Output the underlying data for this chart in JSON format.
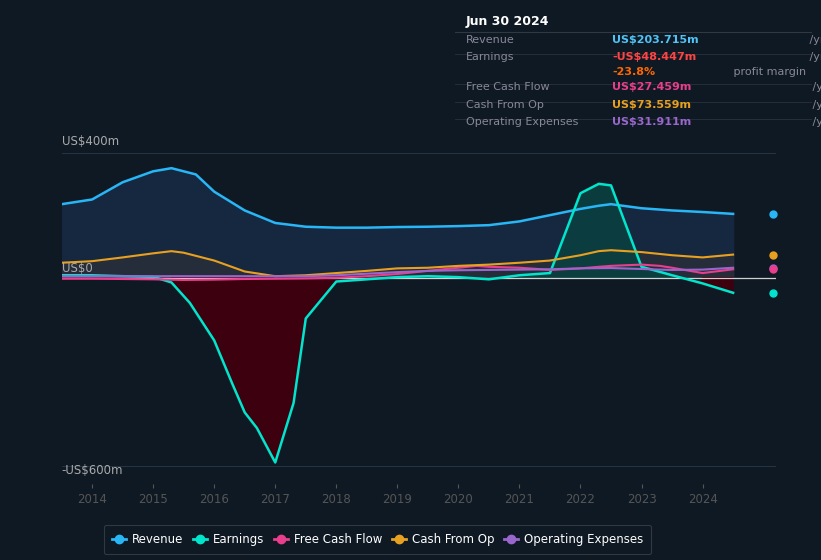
{
  "background_color": "#0f1923",
  "plot_bg_color": "#0f1923",
  "ylim": [
    -660,
    440
  ],
  "xlim": [
    2013.5,
    2025.2
  ],
  "xticks": [
    2014,
    2015,
    2016,
    2017,
    2018,
    2019,
    2020,
    2021,
    2022,
    2023,
    2024
  ],
  "series": {
    "revenue": {
      "color": "#29b6f6",
      "fill_color": "#1a3a5c",
      "label": "Revenue"
    },
    "earnings": {
      "color": "#00e5cc",
      "fill_pos": "#005555",
      "fill_neg": "#3d0010",
      "label": "Earnings"
    },
    "free_cash_flow": {
      "color": "#e83e8c",
      "label": "Free Cash Flow"
    },
    "cash_from_op": {
      "color": "#e8a020",
      "fill_color": "#3a3020",
      "label": "Cash From Op"
    },
    "operating_expenses": {
      "color": "#9966cc",
      "label": "Operating Expenses"
    }
  },
  "revenue_x": [
    2013.5,
    2014.0,
    2014.5,
    2015.0,
    2015.3,
    2015.7,
    2016.0,
    2016.5,
    2017.0,
    2017.5,
    2018.0,
    2018.5,
    2019.0,
    2019.5,
    2020.0,
    2020.5,
    2021.0,
    2021.5,
    2022.0,
    2022.3,
    2022.5,
    2023.0,
    2023.5,
    2024.0,
    2024.5
  ],
  "revenue_y": [
    235,
    250,
    305,
    340,
    350,
    330,
    275,
    215,
    175,
    163,
    160,
    160,
    162,
    163,
    165,
    168,
    180,
    200,
    220,
    230,
    235,
    222,
    215,
    210,
    204
  ],
  "earnings_x": [
    2013.5,
    2014.0,
    2014.5,
    2015.0,
    2015.3,
    2015.6,
    2016.0,
    2016.3,
    2016.5,
    2016.7,
    2017.0,
    2017.3,
    2017.5,
    2018.0,
    2018.5,
    2019.0,
    2019.5,
    2020.0,
    2020.5,
    2021.0,
    2021.5,
    2022.0,
    2022.3,
    2022.5,
    2023.0,
    2023.5,
    2024.0,
    2024.5
  ],
  "earnings_y": [
    8,
    8,
    5,
    3,
    -15,
    -80,
    -200,
    -340,
    -430,
    -480,
    -590,
    -400,
    -130,
    -12,
    -5,
    2,
    5,
    2,
    -5,
    8,
    15,
    270,
    300,
    295,
    35,
    8,
    -18,
    -48
  ],
  "fcf_x": [
    2013.5,
    2014.0,
    2014.5,
    2015.0,
    2015.5,
    2016.0,
    2016.5,
    2017.0,
    2017.5,
    2018.0,
    2018.5,
    2019.0,
    2019.5,
    2020.0,
    2020.3,
    2020.5,
    2021.0,
    2021.3,
    2021.5,
    2022.0,
    2022.3,
    2022.5,
    2023.0,
    2023.3,
    2023.5,
    2024.0,
    2024.5
  ],
  "fcf_y": [
    -3,
    -3,
    -4,
    -5,
    -7,
    -6,
    -4,
    -3,
    -2,
    0,
    5,
    12,
    22,
    32,
    38,
    35,
    32,
    28,
    25,
    30,
    35,
    38,
    42,
    38,
    32,
    15,
    27
  ],
  "cfop_x": [
    2013.5,
    2014.0,
    2014.5,
    2015.0,
    2015.3,
    2015.5,
    2016.0,
    2016.5,
    2017.0,
    2017.5,
    2018.0,
    2018.5,
    2019.0,
    2019.5,
    2020.0,
    2020.5,
    2021.0,
    2021.5,
    2022.0,
    2022.3,
    2022.5,
    2023.0,
    2023.5,
    2024.0,
    2024.5
  ],
  "cfop_y": [
    48,
    53,
    65,
    78,
    85,
    80,
    55,
    20,
    5,
    8,
    15,
    22,
    30,
    32,
    38,
    42,
    48,
    55,
    72,
    85,
    88,
    82,
    72,
    65,
    74
  ],
  "opex_x": [
    2013.5,
    2014.0,
    2014.5,
    2015.0,
    2015.5,
    2016.0,
    2016.5,
    2017.0,
    2017.5,
    2018.0,
    2018.5,
    2019.0,
    2019.5,
    2020.0,
    2020.5,
    2021.0,
    2021.5,
    2022.0,
    2022.5,
    2023.0,
    2023.3,
    2023.5,
    2024.0,
    2024.5
  ],
  "opex_y": [
    5,
    5,
    5,
    5,
    5,
    5,
    5,
    5,
    5,
    8,
    13,
    18,
    22,
    24,
    25,
    26,
    27,
    30,
    31,
    28,
    26,
    25,
    26,
    32
  ],
  "info_box": {
    "date": "Jun 30 2024",
    "rows": [
      {
        "label": "Revenue",
        "value": "US$203.715m",
        "unit": " /yr",
        "vcolor": "#4fc3f7"
      },
      {
        "label": "Earnings",
        "value": "-US$48.447m",
        "unit": " /yr",
        "vcolor": "#ff4444"
      },
      {
        "label": "",
        "value": "-23.8%",
        "unit": " profit margin",
        "vcolor": "#ff6600"
      },
      {
        "label": "Free Cash Flow",
        "value": "US$27.459m",
        "unit": " /yr",
        "vcolor": "#e83e8c"
      },
      {
        "label": "Cash From Op",
        "value": "US$73.559m",
        "unit": " /yr",
        "vcolor": "#e8a020"
      },
      {
        "label": "Operating Expenses",
        "value": "US$31.911m",
        "unit": " /yr",
        "vcolor": "#9966cc"
      }
    ]
  }
}
